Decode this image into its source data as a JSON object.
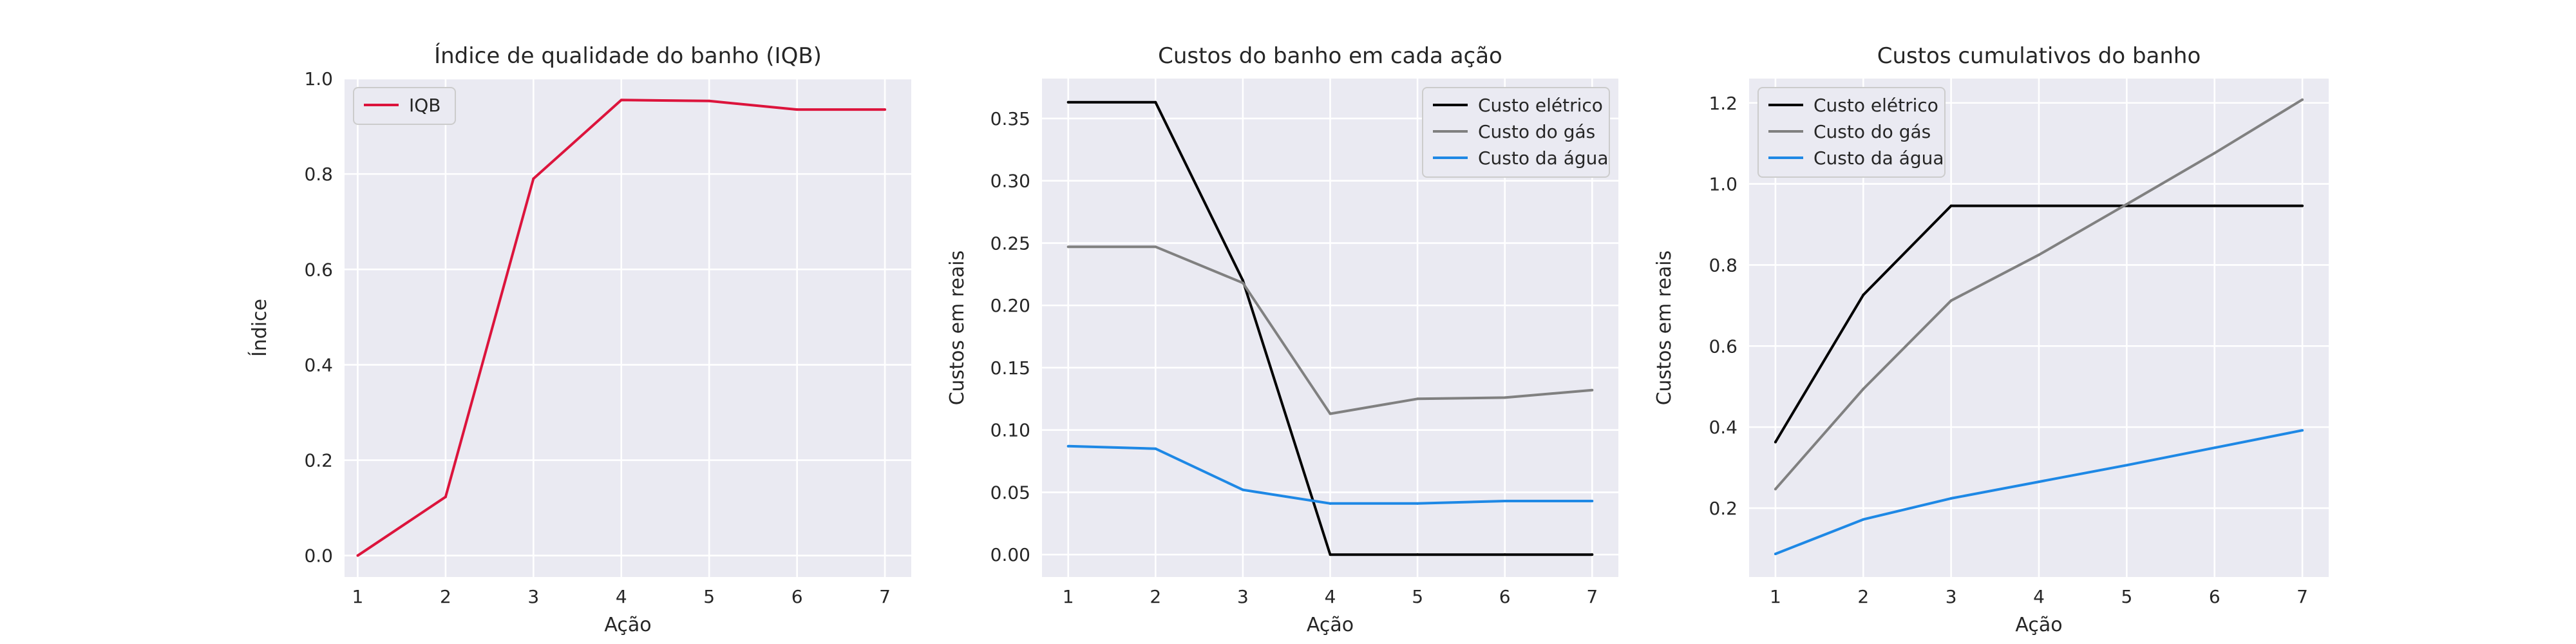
{
  "chart_data": [
    {
      "type": "line",
      "title": "Índice de qualidade do banho (IQB)",
      "xlabel": "Ação",
      "ylabel": "Índice",
      "x": [
        1,
        2,
        3,
        4,
        5,
        6,
        7
      ],
      "xlim": [
        0.85,
        7.3
      ],
      "ylim": [
        -0.045,
        1.0
      ],
      "xticks": [
        1,
        2,
        3,
        4,
        5,
        6,
        7
      ],
      "yticks": [
        0.0,
        0.2,
        0.4,
        0.6,
        0.8,
        1.0
      ],
      "ytick_format": 1,
      "grid": true,
      "legend_position": "upper-left",
      "series": [
        {
          "name": "IQB",
          "color": "#dc143c",
          "values": [
            0.0,
            0.123,
            0.79,
            0.955,
            0.953,
            0.935,
            0.935
          ]
        }
      ]
    },
    {
      "type": "line",
      "title": "Custos do banho em cada ação",
      "xlabel": "Ação",
      "ylabel": "Custos em reais",
      "x": [
        1,
        2,
        3,
        4,
        5,
        6,
        7
      ],
      "xlim": [
        0.7,
        7.3
      ],
      "ylim": [
        -0.018,
        0.382
      ],
      "xticks": [
        1,
        2,
        3,
        4,
        5,
        6,
        7
      ],
      "yticks": [
        0.0,
        0.05,
        0.1,
        0.15,
        0.2,
        0.25,
        0.3,
        0.35
      ],
      "ytick_format": 2,
      "grid": true,
      "legend_position": "upper-right",
      "series": [
        {
          "name": "Custo elétrico",
          "color": "#000000",
          "values": [
            0.363,
            0.363,
            0.22,
            0.0,
            0.0,
            0.0,
            0.0
          ]
        },
        {
          "name": "Custo do gás",
          "color": "#808080",
          "values": [
            0.247,
            0.247,
            0.218,
            0.113,
            0.125,
            0.126,
            0.132
          ]
        },
        {
          "name": "Custo da água",
          "color": "#1e88e5",
          "values": [
            0.087,
            0.085,
            0.052,
            0.041,
            0.041,
            0.043,
            0.043
          ]
        }
      ]
    },
    {
      "type": "line",
      "title": "Custos cumulativos do banho",
      "xlabel": "Ação",
      "ylabel": "Custos em reais",
      "x": [
        1,
        2,
        3,
        4,
        5,
        6,
        7
      ],
      "xlim": [
        0.7,
        7.3
      ],
      "ylim": [
        0.03,
        1.26
      ],
      "xticks": [
        1,
        2,
        3,
        4,
        5,
        6,
        7
      ],
      "yticks": [
        0.2,
        0.4,
        0.6,
        0.8,
        1.0,
        1.2
      ],
      "ytick_format": 1,
      "grid": true,
      "legend_position": "upper-left",
      "series": [
        {
          "name": "Custo elétrico",
          "color": "#000000",
          "values": [
            0.363,
            0.726,
            0.946,
            0.946,
            0.946,
            0.946,
            0.946
          ]
        },
        {
          "name": "Custo do gás",
          "color": "#808080",
          "values": [
            0.247,
            0.494,
            0.712,
            0.825,
            0.95,
            1.076,
            1.208
          ]
        },
        {
          "name": "Custo da água",
          "color": "#1e88e5",
          "values": [
            0.087,
            0.172,
            0.224,
            0.265,
            0.306,
            0.349,
            0.392
          ]
        }
      ]
    }
  ]
}
